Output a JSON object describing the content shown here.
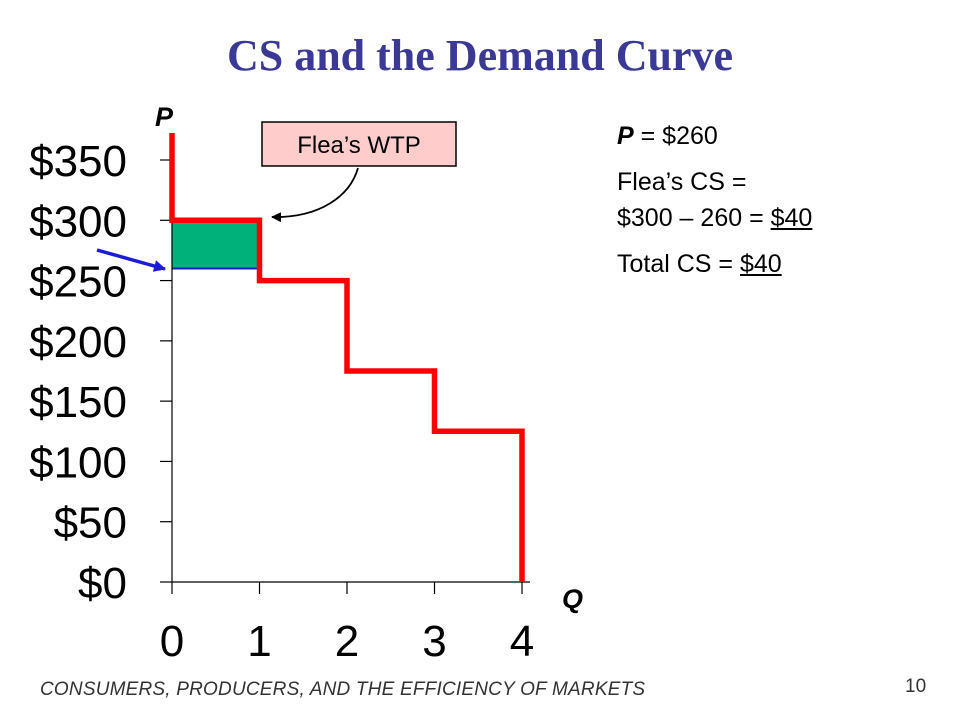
{
  "slide": {
    "title": "CS and the Demand Curve",
    "footer": "CONSUMERS, PRODUCERS, AND THE EFFICIENCY OF MARKETS",
    "page_number": "10"
  },
  "side_text": {
    "price_var": "P",
    "price_value": " = $260",
    "flea_cs_label": "Flea’s CS =",
    "flea_cs_calc": "$300 – 260 = ",
    "flea_cs_value": "$40",
    "total_cs_label": "Total CS = ",
    "total_cs_value": "$40"
  },
  "callout": {
    "label": "Flea’s WTP"
  },
  "colors": {
    "title": "#3a3a96",
    "demand_curve": "#ff0000",
    "consumer_surplus_fill": "#00b27a",
    "price_line": "#1c1cd6",
    "pointer_arrow": "#1c1cd6",
    "callout_fill": "#ffcccc"
  },
  "chart_data": {
    "type": "line",
    "xlabel": "Q",
    "ylabel": "P",
    "x_ticks": [
      "0",
      "1",
      "2",
      "3",
      "4"
    ],
    "y_ticks": [
      "$0",
      "$50",
      "$100",
      "$150",
      "$200",
      "$250",
      "$300",
      "$350"
    ],
    "xlim": [
      0,
      4
    ],
    "ylim": [
      0,
      350
    ],
    "grid": false,
    "demand_curve_steps": [
      {
        "q_from": 0,
        "q_to": 1,
        "price": 300
      },
      {
        "q_from": 1,
        "q_to": 2,
        "price": 250
      },
      {
        "q_from": 2,
        "q_to": 3,
        "price": 175
      },
      {
        "q_from": 3,
        "q_to": 4,
        "price": 125
      }
    ],
    "market_price": 260,
    "consumer_surplus": {
      "q_from": 0,
      "q_to": 1,
      "p_low": 260,
      "p_high": 300
    }
  }
}
